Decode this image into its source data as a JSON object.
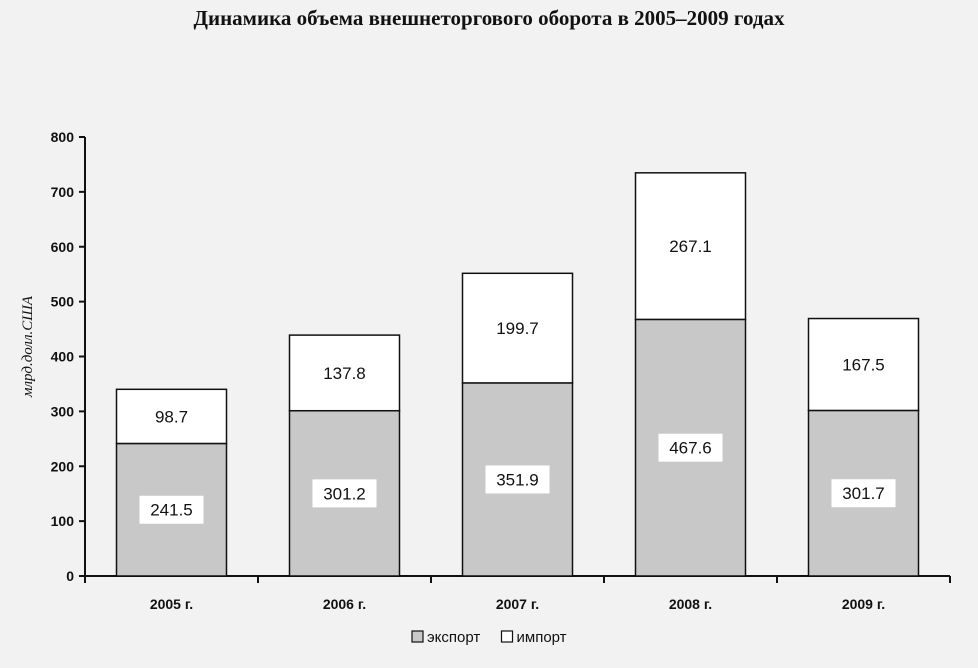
{
  "chart_data": {
    "type": "bar",
    "stacked": true,
    "title": "Динамика объема внешнеторгового оборота в 2005–2009 годах",
    "ylabel": "млрд.долл.США",
    "xlabel": "",
    "categories": [
      "2005 г.",
      "2006 г.",
      "2007 г.",
      "2008 г.",
      "2009 г."
    ],
    "series": [
      {
        "name": "экспорт",
        "values": [
          241.5,
          301.2,
          351.9,
          467.6,
          301.7
        ],
        "labels": [
          "241.5",
          "301.2",
          "351.9",
          "467.6",
          "301.7"
        ],
        "color": "#c8c8c8"
      },
      {
        "name": "импорт",
        "values": [
          98.7,
          137.8,
          199.7,
          267.1,
          167.5
        ],
        "labels": [
          "98.7",
          "137.8",
          "199.7",
          "267.1",
          "167.5"
        ],
        "color": "#ffffff"
      }
    ],
    "ylim": [
      0,
      800
    ],
    "yticks": [
      "0",
      "100",
      "200",
      "300",
      "400",
      "500",
      "600",
      "700",
      "800"
    ],
    "grid": false,
    "legend_position": "bottom-center"
  }
}
